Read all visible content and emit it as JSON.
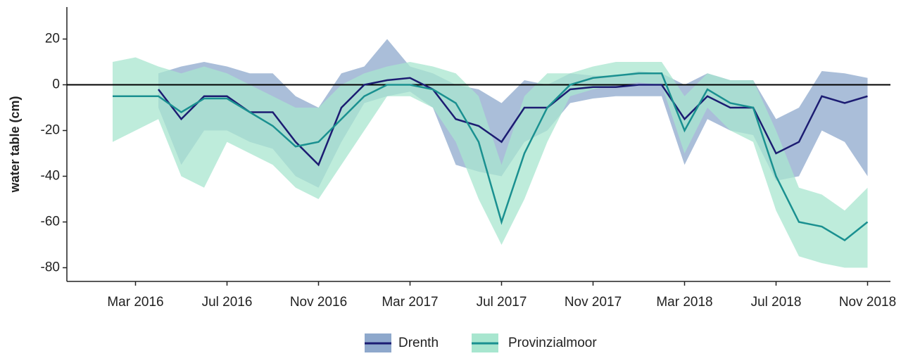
{
  "chart_data": {
    "type": "line",
    "ylabel": "water table (cm)",
    "x": [
      "2016-02",
      "2016-03",
      "2016-04",
      "2016-05",
      "2016-06",
      "2016-07",
      "2016-08",
      "2016-09",
      "2016-10",
      "2016-11",
      "2016-12",
      "2017-01",
      "2017-02",
      "2017-03",
      "2017-04",
      "2017-05",
      "2017-06",
      "2017-07",
      "2017-08",
      "2017-09",
      "2017-10",
      "2017-11",
      "2017-12",
      "2018-01",
      "2018-02",
      "2018-03",
      "2018-04",
      "2018-05",
      "2018-06",
      "2018-07",
      "2018-08",
      "2018-09",
      "2018-10",
      "2018-11"
    ],
    "series": [
      {
        "name": "Drenth",
        "color": "#1c1c72",
        "band_color": "#8ea8cc",
        "values": [
          null,
          null,
          -2,
          -15,
          -5,
          -5,
          -12,
          -12,
          -25,
          -35,
          -10,
          0,
          2,
          3,
          -2,
          -15,
          -18,
          -25,
          -10,
          -10,
          -2,
          -1,
          -1,
          0,
          0,
          -15,
          -5,
          -10,
          -10,
          -30,
          -25,
          -5,
          -8,
          -5
        ],
        "lower": [
          null,
          null,
          -10,
          -35,
          -20,
          -20,
          -25,
          -28,
          -40,
          -45,
          -25,
          -8,
          -5,
          -3,
          -10,
          -35,
          -38,
          -40,
          -25,
          -20,
          -8,
          -6,
          -5,
          -5,
          -5,
          -35,
          -15,
          -20,
          -22,
          -42,
          -40,
          -20,
          -25,
          -40
        ],
        "upper": [
          null,
          null,
          5,
          8,
          10,
          8,
          5,
          5,
          -5,
          -10,
          5,
          8,
          20,
          8,
          5,
          0,
          -2,
          -8,
          2,
          0,
          5,
          4,
          4,
          6,
          5,
          0,
          5,
          2,
          2,
          -15,
          -10,
          6,
          5,
          3
        ]
      },
      {
        "name": "Provinzialmoor",
        "color": "#1a9090",
        "band_color": "#a8e6cf",
        "values": [
          -5,
          -5,
          -5,
          -12,
          -6,
          -6,
          -12,
          -18,
          -27,
          -25,
          -15,
          -5,
          0,
          0,
          -2,
          -8,
          -25,
          -60,
          -30,
          -10,
          0,
          3,
          4,
          5,
          5,
          -20,
          -2,
          -8,
          -10,
          -40,
          -60,
          -62,
          -68,
          -60
        ],
        "lower": [
          -25,
          -20,
          -15,
          -40,
          -45,
          -25,
          -30,
          -35,
          -45,
          -50,
          -35,
          -20,
          -5,
          -5,
          -10,
          -25,
          -50,
          -70,
          -50,
          -25,
          -5,
          -2,
          0,
          1,
          0,
          -30,
          -10,
          -20,
          -25,
          -55,
          -75,
          -78,
          -80,
          -80
        ],
        "upper": [
          10,
          12,
          8,
          5,
          8,
          5,
          0,
          -5,
          -10,
          -10,
          0,
          5,
          8,
          10,
          8,
          5,
          -5,
          -35,
          -5,
          5,
          5,
          8,
          10,
          10,
          10,
          -5,
          5,
          2,
          2,
          -20,
          -45,
          -48,
          -55,
          -45
        ]
      }
    ],
    "xlim": [
      "2015-12",
      "2018-12"
    ],
    "xticks": [
      {
        "value": "2016-03",
        "label": "Mar 2016"
      },
      {
        "value": "2016-07",
        "label": "Jul 2016"
      },
      {
        "value": "2016-11",
        "label": "Nov 2016"
      },
      {
        "value": "2017-03",
        "label": "Mar 2017"
      },
      {
        "value": "2017-07",
        "label": "Jul 2017"
      },
      {
        "value": "2017-11",
        "label": "Nov 2017"
      },
      {
        "value": "2018-03",
        "label": "Mar 2018"
      },
      {
        "value": "2018-07",
        "label": "Jul 2018"
      },
      {
        "value": "2018-11",
        "label": "Nov 2018"
      }
    ],
    "ylim": [
      -86,
      34
    ],
    "yticks": [
      -80,
      -60,
      -40,
      -20,
      0,
      20
    ],
    "hline": 0,
    "grid": false,
    "legend": "bottom"
  }
}
